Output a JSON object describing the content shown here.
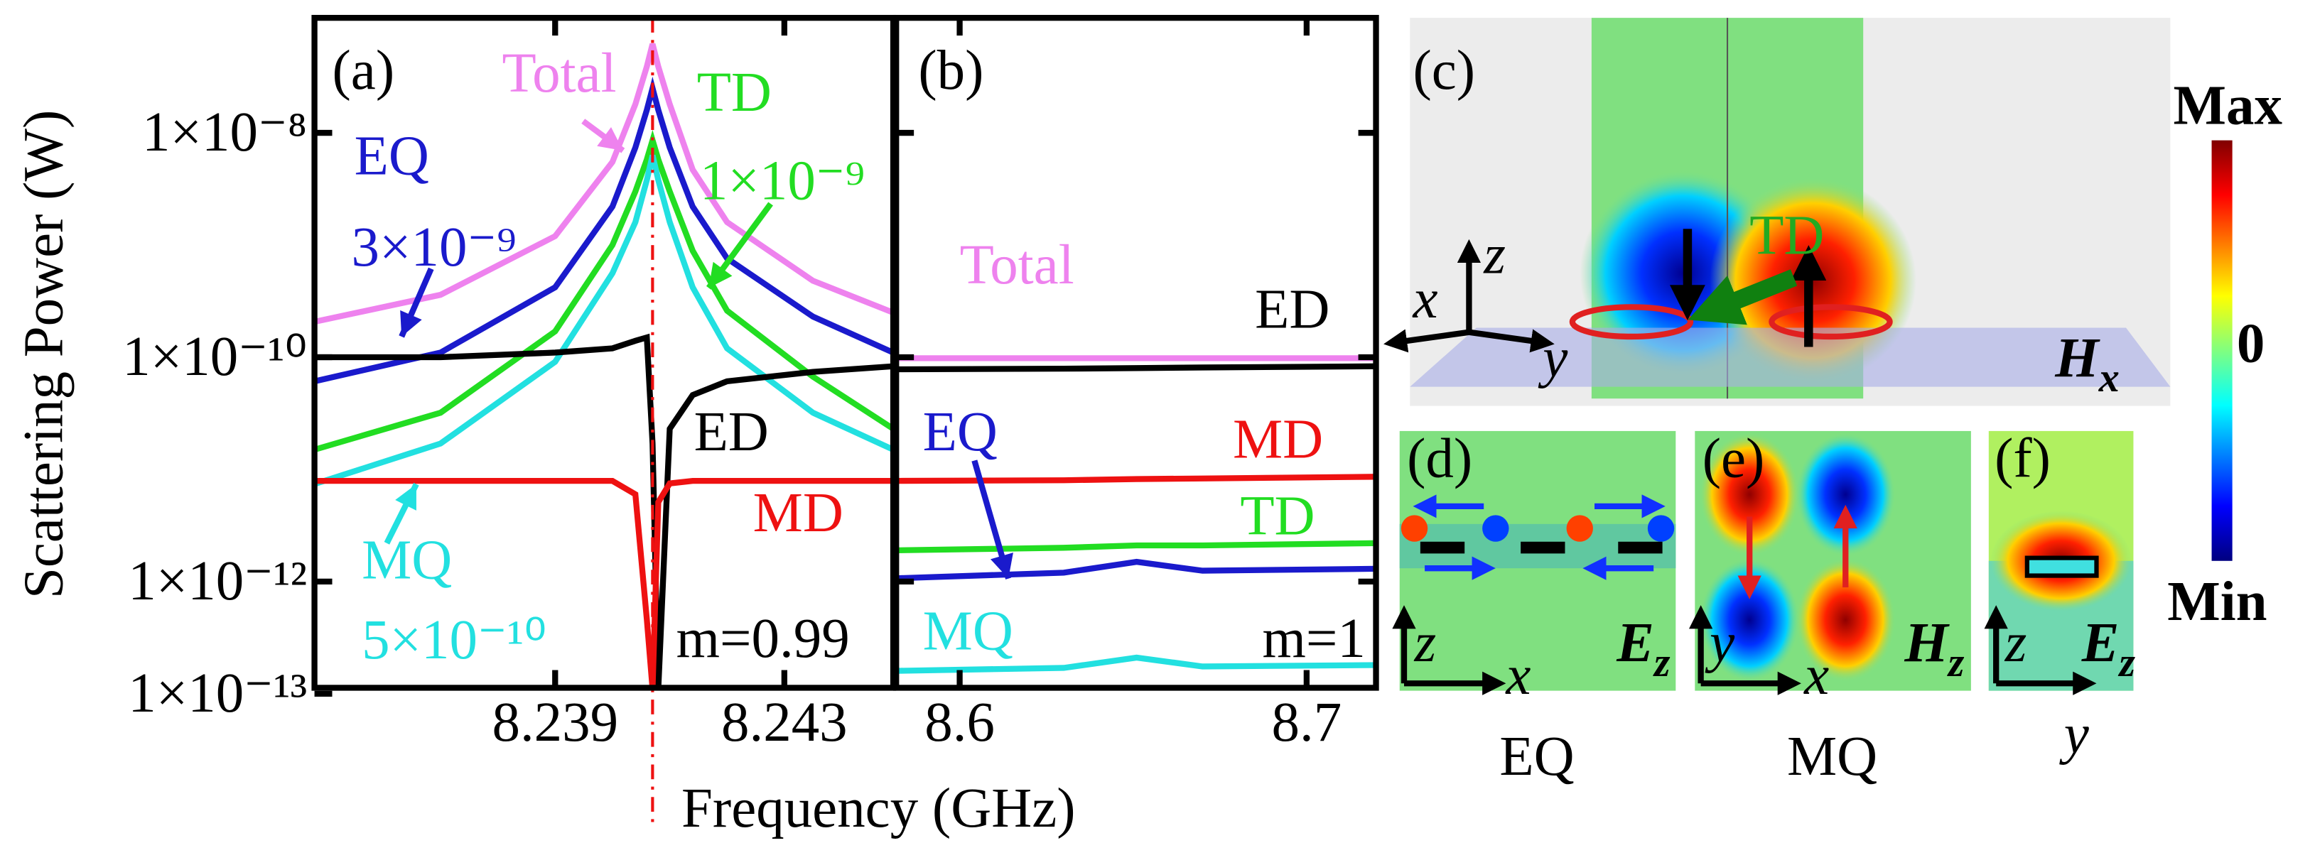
{
  "chart_data": [
    {
      "type": "line",
      "log_y": true,
      "xlim": [
        8.2348,
        8.2449
      ],
      "ylim": [
        1.13e-13,
        1.06e-07
      ],
      "xticks": [
        8.239,
        8.243
      ],
      "yticks": [
        {
          "value": 1e-08,
          "label": "1×10⁻⁸"
        },
        {
          "value": 1e-10,
          "label": "1×10⁻¹⁰"
        },
        {
          "value": 1e-12,
          "label": "1×10⁻¹²"
        },
        {
          "value": 1e-13,
          "label": "1×10⁻¹³"
        }
      ],
      "vline": 8.2407,
      "x": [
        8.2348,
        8.237,
        8.239,
        8.24,
        8.2404,
        8.2406,
        8.2407,
        8.2408,
        8.241,
        8.2414,
        8.242,
        8.2435,
        8.2449
      ],
      "series": [
        {
          "name": "Total",
          "color": "#ee82ee",
          "values": [
            2.07e-10,
            3.6e-10,
            1.2e-09,
            5.5e-09,
            1.8e-08,
            3.9e-08,
            6.2e-08,
            3.9e-08,
            1.8e-08,
            4.7e-09,
            1.6e-09,
            4.8e-10,
            2.5e-10
          ]
        },
        {
          "name": "EQ",
          "color": "#1a1acc",
          "values": [
            6.1e-11,
            1.1e-10,
            4.2e-10,
            2.2e-09,
            7.4e-09,
            1.6e-08,
            2.5e-08,
            1.6e-08,
            7.4e-09,
            2.2e-09,
            7.6e-10,
            2.3e-10,
            1.1e-10
          ]
        },
        {
          "name": "TD",
          "color": "#22dd22",
          "values": [
            1.5e-11,
            3.2e-11,
            1.7e-10,
            1e-09,
            3e-09,
            5.8e-09,
            8.6e-09,
            5.8e-09,
            3e-09,
            8.9e-10,
            2.6e-10,
            6.7e-11,
            2.3e-11
          ]
        },
        {
          "name": "MQ",
          "color": "#22e0e0",
          "values": [
            7.4e-12,
            1.7e-11,
            9.1e-11,
            5.6e-10,
            1.6e-09,
            3.8e-09,
            6.3e-09,
            3.8e-09,
            1.6e-09,
            4.2e-10,
            1.2e-10,
            3.2e-11,
            1.5e-11
          ]
        },
        {
          "name": "ED",
          "color": "#000000",
          "values": [
            1e-10,
            1e-10,
            1.1e-10,
            1.2e-10,
            1.4e-10,
            1.5e-10,
            1.7e-11,
            1.1e-13,
            2.3e-11,
            4.6e-11,
            6.1e-11,
            7.4e-11,
            8.3e-11
          ]
        },
        {
          "name": "MD",
          "color": "#ee1111",
          "values": [
            7.9e-12,
            7.9e-12,
            7.9e-12,
            7.9e-12,
            6e-12,
            4.6e-13,
            1.1e-13,
            5.1e-12,
            7.5e-12,
            7.9e-12,
            7.9e-12,
            7.9e-12,
            7.9e-12
          ]
        }
      ],
      "annotations": [
        {
          "text": "(a)",
          "color": "#000000"
        },
        {
          "text": "3×10⁻⁹",
          "color": "#1a1acc"
        },
        {
          "text": "1×10⁻⁹",
          "color": "#22dd22"
        },
        {
          "text": "5×10⁻¹⁰",
          "color": "#22e0e0"
        },
        {
          "text": "m=0.99",
          "color": "#000000"
        }
      ]
    },
    {
      "type": "line",
      "log_y": true,
      "xlim": [
        8.5817,
        8.72
      ],
      "ylim": [
        1.13e-13,
        1.06e-07
      ],
      "xticks": [
        8.6,
        8.7
      ],
      "yticks": [
        1e-08,
        1e-10,
        1e-12
      ],
      "x": [
        8.582,
        8.63,
        8.651,
        8.67,
        8.72
      ],
      "series": [
        {
          "name": "Total",
          "color": "#ee82ee",
          "values": [
            9.8e-11,
            9.8e-11,
            9.8e-11,
            9.8e-11,
            9.8e-11
          ]
        },
        {
          "name": "EQ",
          "color": "#1a1acc",
          "values": [
            1.07e-12,
            1.2e-12,
            1.5e-12,
            1.25e-12,
            1.3e-12
          ]
        },
        {
          "name": "TD",
          "color": "#22dd22",
          "values": [
            1.9e-12,
            2e-12,
            2.1e-12,
            2.1e-12,
            2.2e-12
          ]
        },
        {
          "name": "MQ",
          "color": "#22e0e0",
          "values": [
            1.6e-13,
            1.7e-13,
            2.1e-13,
            1.75e-13,
            1.8e-13
          ]
        },
        {
          "name": "ED",
          "color": "#000000",
          "values": [
            7.8e-11,
            7.9e-11,
            8e-11,
            8.1e-11,
            8.3e-11
          ]
        },
        {
          "name": "MD",
          "color": "#ee1111",
          "values": [
            7.9e-12,
            8e-12,
            8.2e-12,
            8.3e-12,
            8.6e-12
          ]
        }
      ],
      "annotations": [
        {
          "text": "(b)",
          "color": "#000000"
        },
        {
          "text": "m=1",
          "color": "#000000"
        }
      ]
    }
  ],
  "xlabel": "Frequency (GHz)",
  "ylabel": "Scattering Power (W)",
  "panels": {
    "c": {
      "label": "(c)",
      "mode": "TD",
      "axes": [
        "x",
        "y",
        "z"
      ],
      "field": {
        "symbol": "H",
        "sub": "x"
      }
    },
    "colorbar": {
      "max": "Max",
      "mid": "0",
      "min": "Min"
    },
    "d": {
      "label": "(d)",
      "axes": [
        "z",
        "x"
      ],
      "field": {
        "symbol": "E",
        "sub": "z"
      },
      "caption": "EQ"
    },
    "e": {
      "label": "(e)",
      "axes": [
        "y",
        "x"
      ],
      "field": {
        "symbol": "H",
        "sub": "z"
      },
      "caption": "MQ"
    },
    "f": {
      "label": "(f)",
      "axes": [
        "z",
        "y"
      ],
      "field": {
        "symbol": "E",
        "sub": "z"
      }
    }
  }
}
